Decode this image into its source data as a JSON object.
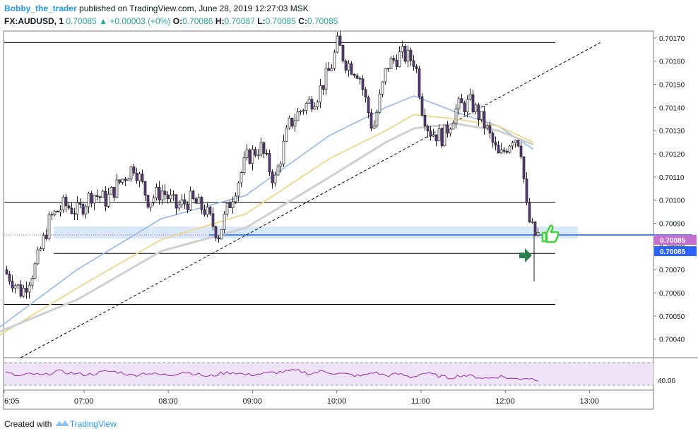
{
  "header": {
    "author": "Bobby_the_trader",
    "published": "published on TradingView.com, June 28, 2019 12:27:03 MSK",
    "symbol": "FX:AUDUSD, 1",
    "last": "0.70085",
    "change_arrow": "▲",
    "change": "+0.00003 (+0%)",
    "o_label": "O:",
    "o": "0.70086",
    "h_label": "H:",
    "h": "0.70087",
    "l_label": "L:",
    "l": "0.70085",
    "c_label": "C:",
    "c": "0.70085"
  },
  "footer": {
    "created": "Created with",
    "brand": "TradingView",
    "logo_icon": "tradingview-logo-icon"
  },
  "colors": {
    "candle_body": "#5e3a7e",
    "ma_fast": "#90b4ec",
    "ma_mid": "#f0d68a",
    "ma_slow": "#cfcfcf",
    "hline": "#000000",
    "zone": "#bbd7f4",
    "price_line": "#4a86e8",
    "rsi_line": "#9c27b0",
    "rsi_fill": "#efe3f8",
    "badge_purple": "#c76fd0",
    "badge_blue": "#2962ff"
  },
  "price_badges": [
    "0.70085",
    "0.70085"
  ],
  "rsi_label": "40.00",
  "icons": [
    "thumbs-up-icon",
    "right-arrow-icon"
  ],
  "chart_data": {
    "type": "candlestick",
    "symbol": "FX:AUDUSD",
    "interval": "1",
    "y_ticks": [
      "0.70170",
      "0.70160",
      "0.70150",
      "0.70140",
      "0.70130",
      "0.70120",
      "0.70110",
      "0.70100",
      "0.70090",
      "0.70080",
      "0.70070",
      "0.70060",
      "0.70050",
      "0.70040"
    ],
    "y_range": [
      0.70032,
      0.70173
    ],
    "x_ticks": [
      "6:05",
      "07:00",
      "08:00",
      "09:00",
      "10:00",
      "11:00",
      "12:00",
      "13:00"
    ],
    "close_series": {
      "x": [
        "06:00",
        "06:10",
        "06:20",
        "06:30",
        "06:40",
        "06:50",
        "07:00",
        "07:10",
        "07:20",
        "07:30",
        "07:40",
        "07:50",
        "08:00",
        "08:10",
        "08:20",
        "08:30",
        "08:40",
        "08:50",
        "09:00",
        "09:10",
        "09:20",
        "09:30",
        "09:40",
        "09:50",
        "10:00",
        "10:05",
        "10:10",
        "10:20",
        "10:30",
        "10:40",
        "10:50",
        "11:00",
        "11:05",
        "11:10",
        "11:20",
        "11:30",
        "11:40",
        "11:50",
        "12:00",
        "12:10",
        "12:15",
        "12:20",
        "12:25"
      ],
      "y": [
        0.7007,
        0.70068,
        0.7006,
        0.70072,
        0.70092,
        0.70098,
        0.70095,
        0.70103,
        0.701,
        0.70108,
        0.70115,
        0.701,
        0.70104,
        0.70097,
        0.701,
        0.70096,
        0.70085,
        0.70102,
        0.70118,
        0.70123,
        0.70108,
        0.70132,
        0.7014,
        0.70145,
        0.70157,
        0.70168,
        0.7016,
        0.70155,
        0.7013,
        0.70158,
        0.70163,
        0.7016,
        0.7014,
        0.7013,
        0.70127,
        0.7014,
        0.70142,
        0.70132,
        0.70118,
        0.70128,
        0.70125,
        0.70093,
        0.70085
      ]
    },
    "moving_averages": [
      {
        "x": [
          "06:00",
          "07:00",
          "08:00",
          "09:00",
          "10:00",
          "10:40",
          "11:00",
          "11:30",
          "12:00",
          "12:25"
        ],
        "y": [
          0.70043,
          0.7007,
          0.70092,
          0.70102,
          0.70128,
          0.7014,
          0.70145,
          0.70138,
          0.70132,
          0.70122
        ]
      },
      {
        "x": [
          "06:00",
          "07:00",
          "08:00",
          "09:00",
          "10:00",
          "10:40",
          "11:00",
          "11:30",
          "12:00",
          "12:25"
        ],
        "y": [
          0.7004,
          0.70062,
          0.70083,
          0.70094,
          0.70118,
          0.7013,
          0.70137,
          0.70135,
          0.70132,
          0.70125
        ]
      },
      {
        "x": [
          "06:00",
          "07:00",
          "08:00",
          "09:00",
          "10:00",
          "10:40",
          "11:00",
          "11:30",
          "12:00",
          "12:25"
        ],
        "y": [
          0.70042,
          0.70057,
          0.70078,
          0.70088,
          0.7011,
          0.70125,
          0.70131,
          0.70133,
          0.7013,
          0.70124
        ]
      }
    ],
    "horizontal_levels": [
      0.70168,
      0.70099,
      0.70077,
      0.70055
    ],
    "zone": [
      0.70084,
      0.70088
    ],
    "trendline": {
      "from": [
        "06:40",
        0.70032
      ],
      "to": [
        "12:40",
        0.70168
      ]
    },
    "last_price": 0.70085,
    "rsi": {
      "level_label": "40.00",
      "upper_dash": 70,
      "lower_dash": 30,
      "range": [
        25,
        75
      ],
      "values": [
        52,
        46,
        50,
        47,
        55,
        52,
        49,
        50,
        55,
        53,
        47,
        52,
        49,
        48,
        54,
        50,
        45,
        51,
        53,
        48,
        50,
        52,
        54,
        56,
        50,
        55,
        51,
        49,
        46,
        53,
        47,
        50,
        44,
        52,
        47,
        43,
        48,
        45,
        42,
        46,
        41,
        43,
        40
      ]
    }
  }
}
